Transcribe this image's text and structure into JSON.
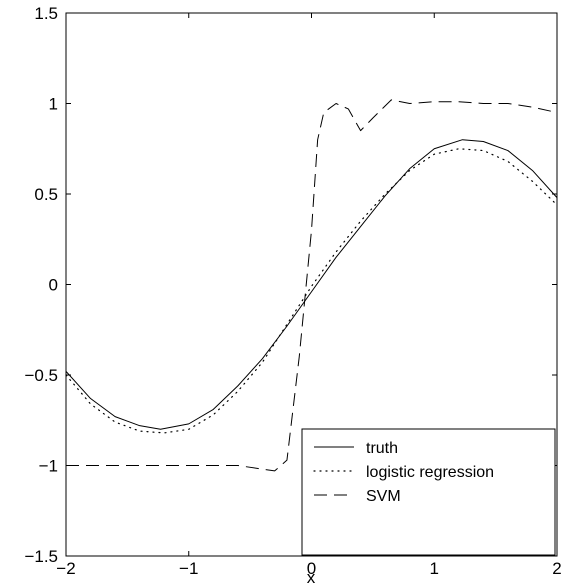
{
  "chart_data": {
    "type": "line",
    "title": "",
    "xlabel": "x",
    "ylabel": "",
    "xlim": [
      -2,
      2
    ],
    "ylim": [
      -1.5,
      1.5
    ],
    "xticks": [
      -2,
      -1,
      0,
      1,
      2
    ],
    "xtick_labels": [
      "−2",
      "−1",
      "0",
      "1",
      "2"
    ],
    "yticks": [
      -1.5,
      -1,
      -0.5,
      0,
      0.5,
      1,
      1.5
    ],
    "ytick_labels": [
      "−1.5",
      "−1",
      "−0.5",
      "0",
      "0.5",
      "1",
      "1.5"
    ],
    "grid": false,
    "legend_position": "bottom-right",
    "series": [
      {
        "name": "truth",
        "style": "solid",
        "color": "#000000",
        "x": [
          -2.0,
          -1.8,
          -1.6,
          -1.4,
          -1.23,
          -1.0,
          -0.8,
          -0.6,
          -0.4,
          -0.2,
          0.0,
          0.2,
          0.4,
          0.6,
          0.8,
          1.0,
          1.23,
          1.4,
          1.6,
          1.8,
          2.0
        ],
        "y": [
          -0.48,
          -0.63,
          -0.73,
          -0.78,
          -0.8,
          -0.77,
          -0.69,
          -0.56,
          -0.41,
          -0.23,
          -0.04,
          0.15,
          0.32,
          0.49,
          0.64,
          0.75,
          0.8,
          0.79,
          0.74,
          0.63,
          0.48
        ]
      },
      {
        "name": "logistic regression",
        "style": "dotted",
        "color": "#000000",
        "x": [
          -2.0,
          -1.8,
          -1.6,
          -1.4,
          -1.2,
          -1.0,
          -0.8,
          -0.6,
          -0.4,
          -0.2,
          0.0,
          0.2,
          0.4,
          0.6,
          0.8,
          1.0,
          1.2,
          1.4,
          1.6,
          1.8,
          2.0
        ],
        "y": [
          -0.5,
          -0.66,
          -0.76,
          -0.81,
          -0.82,
          -0.8,
          -0.72,
          -0.59,
          -0.43,
          -0.22,
          -0.01,
          0.18,
          0.35,
          0.5,
          0.63,
          0.72,
          0.75,
          0.74,
          0.68,
          0.57,
          0.44
        ]
      },
      {
        "name": "SVM",
        "style": "dashed",
        "color": "#000000",
        "x": [
          -2.0,
          -1.5,
          -1.0,
          -0.6,
          -0.3,
          -0.2,
          -0.1,
          0.0,
          0.05,
          0.1,
          0.2,
          0.3,
          0.4,
          0.5,
          0.65,
          0.8,
          1.0,
          1.2,
          1.4,
          1.6,
          1.8,
          2.0
        ],
        "y": [
          -1.0,
          -1.0,
          -1.0,
          -1.0,
          -1.03,
          -0.97,
          -0.4,
          0.3,
          0.8,
          0.95,
          1.0,
          0.97,
          0.85,
          0.92,
          1.02,
          1.0,
          1.01,
          1.01,
          1.0,
          1.0,
          0.98,
          0.95
        ]
      }
    ]
  }
}
